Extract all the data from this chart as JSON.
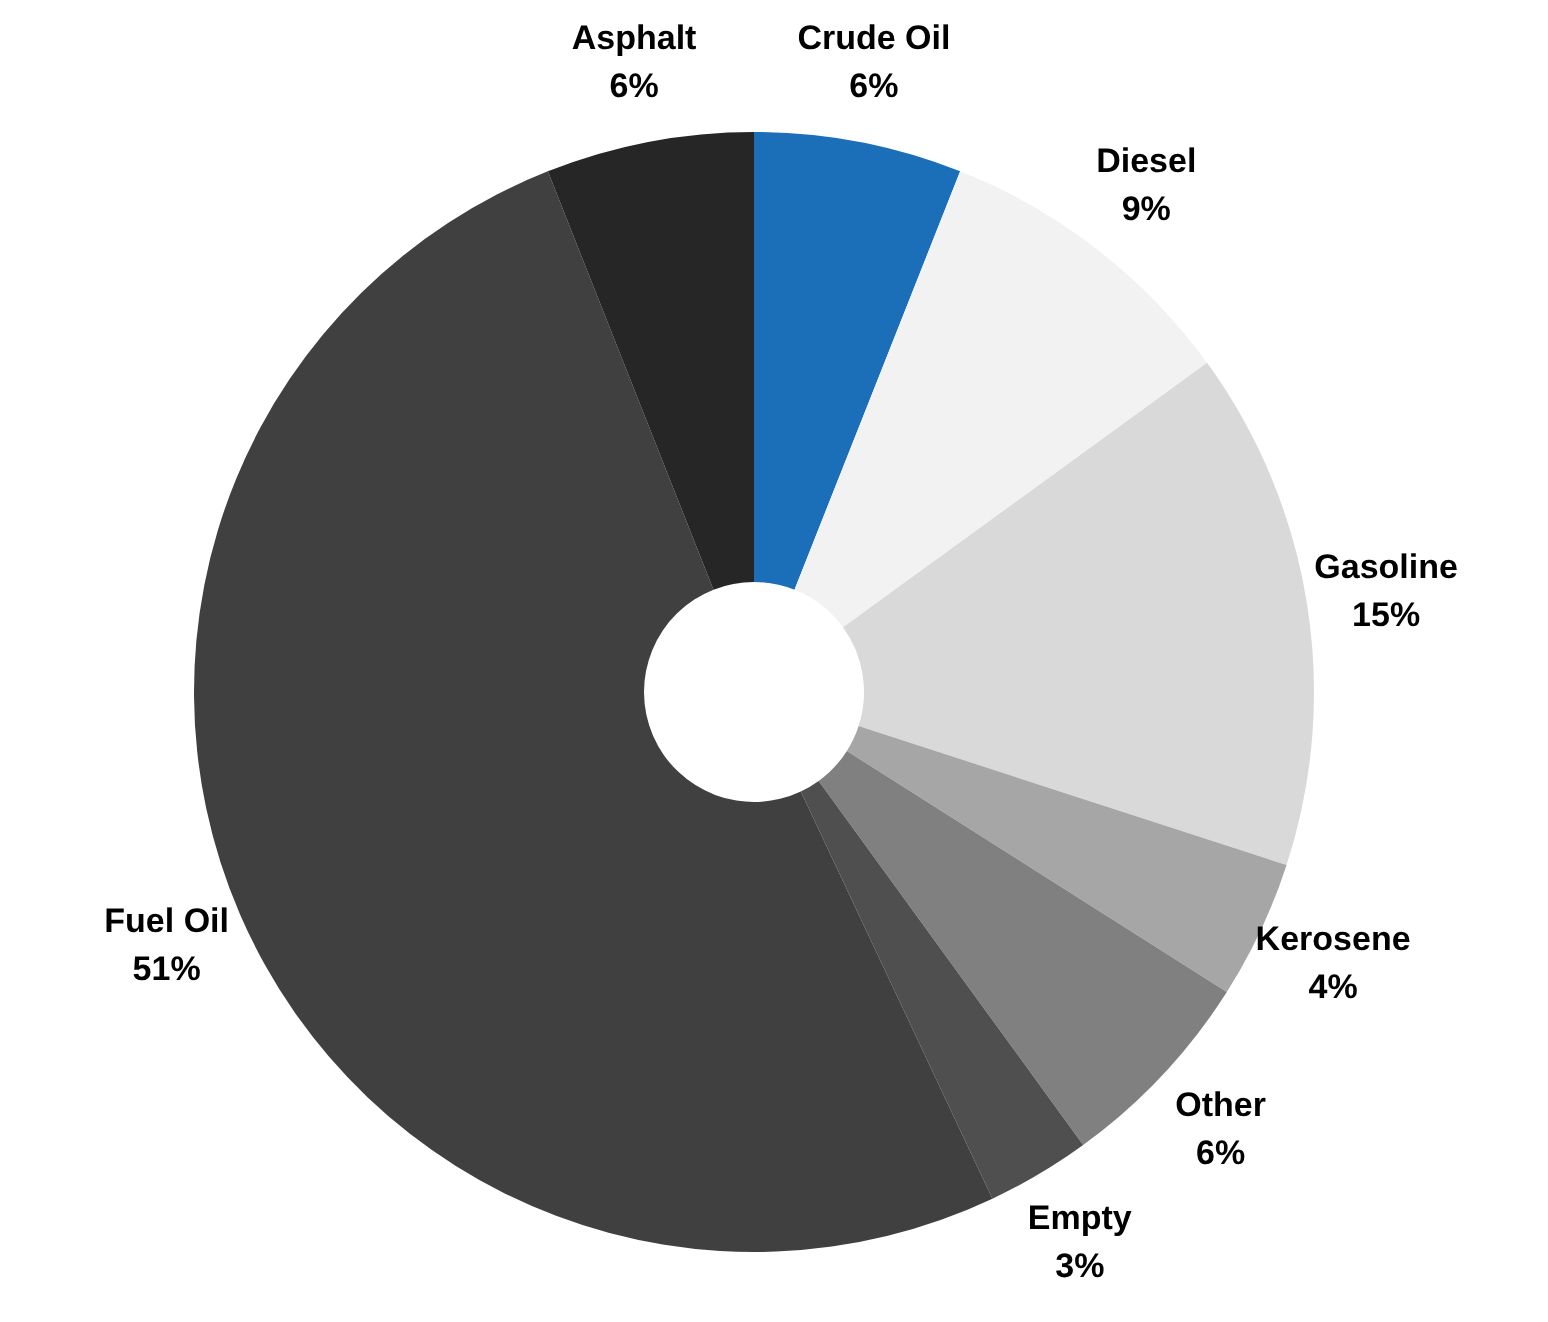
{
  "chart_data": {
    "type": "donut",
    "categories": [
      "Crude Oil",
      "Diesel",
      "Gasoline",
      "Kerosene",
      "Other",
      "Empty",
      "Fuel Oil",
      "Asphalt"
    ],
    "values": [
      6,
      9,
      15,
      4,
      6,
      3,
      51,
      6
    ],
    "colors": [
      "#1a6fb8",
      "#f2f2f2",
      "#d9d9d9",
      "#a6a6a6",
      "#808080",
      "#4f4f4f",
      "#404040",
      "#262626"
    ],
    "value_labels": [
      "6%",
      "9%",
      "15%",
      "4%",
      "6%",
      "3%",
      "51%",
      "6%"
    ]
  }
}
